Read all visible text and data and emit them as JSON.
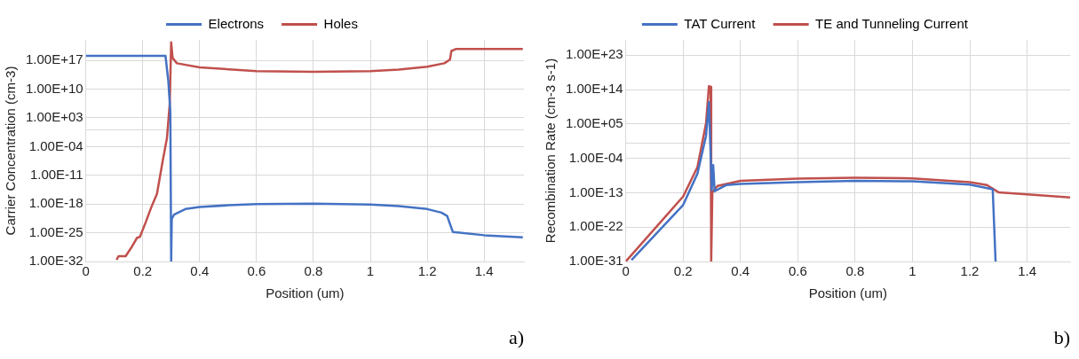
{
  "chart_data": [
    {
      "type": "line",
      "xlabel": "Position (um)",
      "ylabel": "Carrier Concentration (cm-3)",
      "log": "y",
      "grid": true,
      "legend": "top",
      "marker": "none",
      "line_style": "solid",
      "xlim": [
        0,
        1.54
      ],
      "xticks": [
        0,
        0.2,
        0.4,
        0.6,
        0.8,
        1,
        1.2,
        1.4
      ],
      "ylim": [
        1e-32,
        1e+22
      ],
      "yticks": [
        {
          "value": 1e-32,
          "label": "1.00E-32"
        },
        {
          "value": 1e-25,
          "label": "1.00E-25"
        },
        {
          "value": 1e-18,
          "label": "1.00E-18"
        },
        {
          "value": 1e-11,
          "label": "1.00E-11"
        },
        {
          "value": 0.0001,
          "label": "1.00E-04"
        },
        {
          "value": 1,
          "label": null
        },
        {
          "value": 1000.0,
          "label": "1.00E+03"
        },
        {
          "value": 10000000000.0,
          "label": "1.00E+10"
        },
        {
          "value": 1e+17,
          "label": "1.00E+17"
        }
      ],
      "series": [
        {
          "name": "Electrons",
          "color": "#4472c4",
          "x": [
            0,
            0.28,
            0.29,
            0.297,
            0.3,
            0.302,
            0.31,
            0.35,
            0.4,
            0.5,
            0.6,
            0.8,
            1.0,
            1.1,
            1.2,
            1.25,
            1.27,
            1.29,
            1.3,
            1.4,
            1.536
          ],
          "values": [
            1.3e+18,
            1.3e+18,
            1000000000000.0,
            40000.0,
            1e-32,
            2.5e-22,
            2.5e-21,
            6e-20,
            2e-19,
            5e-19,
            1e-18,
            1.3e-18,
            8e-19,
            3e-19,
            6e-20,
            8e-21,
            1.3e-21,
            1.6e-25,
            1.3e-25,
            2.5e-26,
            8e-27
          ]
        },
        {
          "name": "Holes",
          "color": "#c0504d",
          "x": [
            0.108,
            0.115,
            0.14,
            0.16,
            0.18,
            0.19,
            0.21,
            0.23,
            0.25,
            0.27,
            0.285,
            0.295,
            0.3,
            0.305,
            0.32,
            0.4,
            0.6,
            0.8,
            1.0,
            1.1,
            1.2,
            1.26,
            1.28,
            1.285,
            1.3,
            1.536
          ],
          "values": [
            2.5e-32,
            2e-31,
            2e-31,
            2.5e-29,
            6e-27,
            1e-26,
            3e-23,
            1.6e-19,
            3e-16,
            2.5e-08,
            0.01,
            3000000.0,
            2.5e+21,
            4e+17,
            2e+16,
            2000000000000000.0,
            250000000000000.0,
            160000000000000.0,
            250000000000000.0,
            600000000000000.0,
            3000000000000000.0,
            2e+16,
            1.6e+17,
            2e+19,
            6e+19,
            6e+19
          ]
        }
      ],
      "annotations": [
        "a)"
      ]
    },
    {
      "type": "line",
      "xlabel": "Position (um)",
      "ylabel": "Recombination Rate (cm-3 s-1)",
      "log": "y",
      "grid": true,
      "legend": "top",
      "marker": "none",
      "line_style": "solid",
      "xlim": [
        0,
        1.55
      ],
      "xticks": [
        0,
        0.2,
        0.4,
        0.6,
        0.8,
        1,
        1.2,
        1.4
      ],
      "ylim": [
        1e-31,
        1e+27
      ],
      "yticks": [
        {
          "value": 1e-31,
          "label": "1.00E-31"
        },
        {
          "value": 1e-22,
          "label": "1.00E-22"
        },
        {
          "value": 1e-13,
          "label": "1.00E-13"
        },
        {
          "value": 0.0001,
          "label": "1.00E-04"
        },
        {
          "value": 1,
          "label": null
        },
        {
          "value": 100000.0,
          "label": "1.00E+05"
        },
        {
          "value": 100000000000000.0,
          "label": "1.00E+14"
        },
        {
          "value": 1e+23,
          "label": "1.00E+23"
        }
      ],
      "series": [
        {
          "name": "TAT Current",
          "color": "#4472c4",
          "x": [
            0.02,
            0.2,
            0.25,
            0.28,
            0.29,
            0.3,
            0.305,
            0.31,
            0.35,
            0.4,
            0.6,
            0.8,
            1.0,
            1.2,
            1.28,
            1.29
          ],
          "values": [
            2.5e-31,
            6e-17,
            1e-08,
            80.0,
            50000000000.0,
            5e-13,
            1.6e-06,
            2.5e-13,
            1e-11,
            2e-11,
            6e-11,
            1.3e-10,
            1e-10,
            1.3e-11,
            8e-13,
            1e-31
          ]
        },
        {
          "name": "TE and Tunneling Current",
          "color": "#c0504d",
          "x": [
            0,
            0.2,
            0.25,
            0.28,
            0.29,
            0.296,
            0.298,
            0.302,
            0.32,
            0.4,
            0.6,
            0.8,
            1.0,
            1.2,
            1.26,
            1.3,
            1.4,
            1.55
          ],
          "values": [
            1e-31,
            1e-14,
            5e-07,
            160000.0,
            800000000000000.0,
            500000000000000.0,
            1e-31,
            1.3e-13,
            6e-12,
            1.3e-10,
            5e-10,
            8e-10,
            6e-10,
            6e-11,
            1e-11,
            1.3e-13,
            4e-14,
            6e-15
          ]
        }
      ],
      "annotations": [
        "b)"
      ]
    }
  ]
}
